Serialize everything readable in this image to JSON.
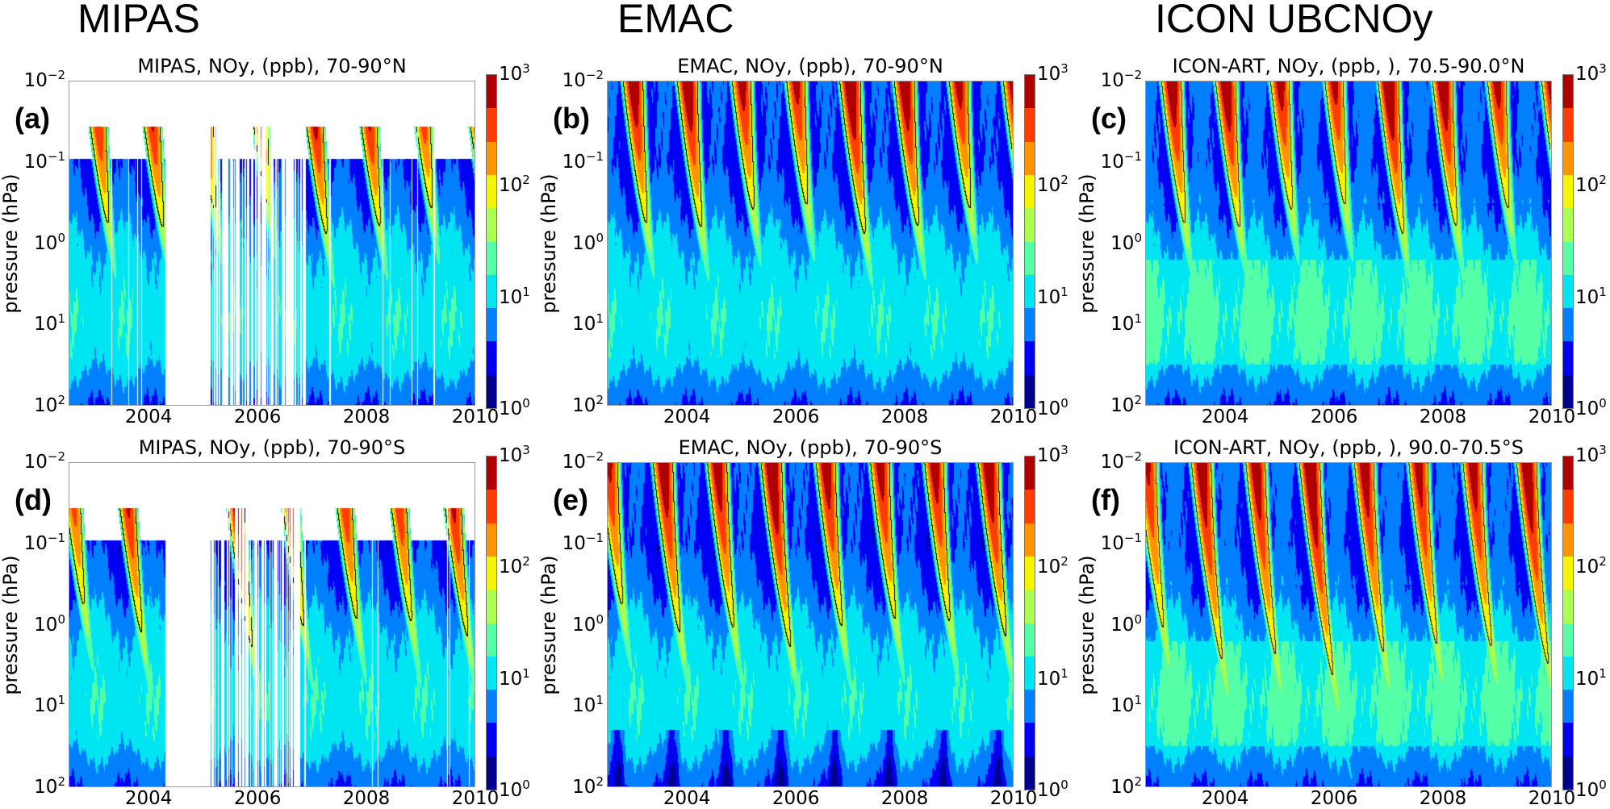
{
  "column_headers": [
    "MIPAS",
    "EMAC",
    "ICON UBCNOy"
  ],
  "colorbar": {
    "ticks": [
      {
        "base": "10",
        "exp": "0"
      },
      {
        "base": "10",
        "exp": "1"
      },
      {
        "base": "10",
        "exp": "2"
      },
      {
        "base": "10",
        "exp": "3"
      }
    ],
    "levels_log10": [
      0,
      0.3,
      0.6,
      0.9,
      1.2,
      1.5,
      1.8,
      2.1,
      2.4,
      2.7,
      3.0
    ],
    "colors": [
      "#00008f",
      "#0000f5",
      "#0080ff",
      "#00e5f2",
      "#55ffa5",
      "#aaff4f",
      "#f5f500",
      "#ff9400",
      "#ff3d00",
      "#b00000"
    ]
  },
  "chart_data": [
    {
      "type": "heatmap",
      "panel_label": "(a)",
      "title": "MIPAS, NOy, (ppb), 70-90°N",
      "source": "MIPAS",
      "hemisphere": "N",
      "ylabel": "pressure (hPa)",
      "xlabel": "",
      "xlim": [
        2002.5,
        2010
      ],
      "ylim_hPa": [
        100,
        0.01
      ],
      "yscale": "log",
      "x_ticks": [
        "2004",
        "2006",
        "2008",
        "2010"
      ],
      "y_ticks": [
        {
          "base": "10",
          "exp": "−2"
        },
        {
          "base": "10",
          "exp": "−1"
        },
        {
          "base": "10",
          "exp": "0"
        },
        {
          "base": "10",
          "exp": "1"
        },
        {
          "base": "10",
          "exp": "2"
        }
      ],
      "colorbar_range_ppb": [
        1,
        1000
      ],
      "contour_color": "#000000",
      "data_gap_years": [
        2004.3,
        2005.1
      ],
      "winter_maxima": [
        2003.0,
        2004.0,
        2005.0,
        2006.0,
        2007.0,
        2008.0,
        2009.0,
        2010.0
      ]
    },
    {
      "type": "heatmap",
      "panel_label": "(b)",
      "title": "EMAC, NOy, (ppb), 70-90°N",
      "source": "EMAC",
      "hemisphere": "N",
      "ylabel": "pressure (hPa)",
      "xlabel": "",
      "xlim": [
        2002.5,
        2010
      ],
      "ylim_hPa": [
        100,
        0.01
      ],
      "yscale": "log",
      "x_ticks": [
        "2004",
        "2006",
        "2008",
        "2010"
      ],
      "y_ticks": [
        {
          "base": "10",
          "exp": "−2"
        },
        {
          "base": "10",
          "exp": "−1"
        },
        {
          "base": "10",
          "exp": "0"
        },
        {
          "base": "10",
          "exp": "1"
        },
        {
          "base": "10",
          "exp": "2"
        }
      ],
      "colorbar_range_ppb": [
        1,
        1000
      ],
      "contour_color": "#000000",
      "winter_maxima": [
        2003.0,
        2004.0,
        2005.0,
        2006.0,
        2007.0,
        2008.0,
        2009.0,
        2010.0
      ]
    },
    {
      "type": "heatmap",
      "panel_label": "(c)",
      "title": "ICON-ART, NOy, (ppb, ), 70.5-90.0°N",
      "source": "ICON",
      "hemisphere": "N",
      "ylabel": "pressure (hPa)",
      "xlabel": "",
      "xlim": [
        2002.5,
        2010
      ],
      "ylim_hPa": [
        100,
        0.01
      ],
      "yscale": "log",
      "x_ticks": [
        "2004",
        "2006",
        "2008",
        "2010"
      ],
      "y_ticks": [
        {
          "base": "10",
          "exp": "−2"
        },
        {
          "base": "10",
          "exp": "−1"
        },
        {
          "base": "10",
          "exp": "0"
        },
        {
          "base": "10",
          "exp": "1"
        },
        {
          "base": "10",
          "exp": "2"
        }
      ],
      "colorbar_range_ppb": [
        1,
        1000
      ],
      "contour_color": "#3a1a5a",
      "winter_maxima": [
        2003.0,
        2004.0,
        2005.0,
        2006.0,
        2007.0,
        2008.0,
        2009.0,
        2010.0
      ]
    },
    {
      "type": "heatmap",
      "panel_label": "(d)",
      "title": "MIPAS, NOy, (ppb), 70-90°S",
      "source": "MIPAS",
      "hemisphere": "S",
      "ylabel": "pressure (hPa)",
      "xlabel": "",
      "xlim": [
        2002.5,
        2010
      ],
      "ylim_hPa": [
        100,
        0.01
      ],
      "yscale": "log",
      "x_ticks": [
        "2004",
        "2006",
        "2008",
        "2010"
      ],
      "y_ticks": [
        {
          "base": "10",
          "exp": "−2"
        },
        {
          "base": "10",
          "exp": "−1"
        },
        {
          "base": "10",
          "exp": "0"
        },
        {
          "base": "10",
          "exp": "1"
        },
        {
          "base": "10",
          "exp": "2"
        }
      ],
      "colorbar_range_ppb": [
        1,
        1000
      ],
      "contour_color": "#000000",
      "data_gap_years": [
        2004.3,
        2005.1
      ],
      "winter_maxima": [
        2002.55,
        2003.55,
        2004.55,
        2005.55,
        2006.55,
        2007.55,
        2008.55,
        2009.55
      ]
    },
    {
      "type": "heatmap",
      "panel_label": "(e)",
      "title": "EMAC, NOy, (ppb), 70-90°S",
      "source": "EMAC",
      "hemisphere": "S",
      "ylabel": "pressure (hPa)",
      "xlabel": "",
      "xlim": [
        2002.5,
        2010
      ],
      "ylim_hPa": [
        100,
        0.01
      ],
      "yscale": "log",
      "x_ticks": [
        "2004",
        "2006",
        "2008",
        "2010"
      ],
      "y_ticks": [
        {
          "base": "10",
          "exp": "−2"
        },
        {
          "base": "10",
          "exp": "−1"
        },
        {
          "base": "10",
          "exp": "0"
        },
        {
          "base": "10",
          "exp": "1"
        },
        {
          "base": "10",
          "exp": "2"
        }
      ],
      "colorbar_range_ppb": [
        1,
        1000
      ],
      "contour_color": "#000000",
      "winter_maxima": [
        2002.55,
        2003.55,
        2004.55,
        2005.55,
        2006.55,
        2007.55,
        2008.55,
        2009.55
      ]
    },
    {
      "type": "heatmap",
      "panel_label": "(f)",
      "title": "ICON-ART, NOy, (ppb, ), 90.0-70.5°S",
      "source": "ICON",
      "hemisphere": "S",
      "ylabel": "pressure (hPa)",
      "xlabel": "",
      "xlim": [
        2002.5,
        2010
      ],
      "ylim_hPa": [
        100,
        0.01
      ],
      "yscale": "log",
      "x_ticks": [
        "2004",
        "2006",
        "2008",
        "2010"
      ],
      "y_ticks": [
        {
          "base": "10",
          "exp": "−2"
        },
        {
          "base": "10",
          "exp": "−1"
        },
        {
          "base": "10",
          "exp": "0"
        },
        {
          "base": "10",
          "exp": "1"
        },
        {
          "base": "10",
          "exp": "2"
        }
      ],
      "colorbar_range_ppb": [
        1,
        1000
      ],
      "contour_color": "#3a1a5a",
      "winter_maxima": [
        2002.55,
        2003.55,
        2004.55,
        2005.55,
        2006.55,
        2007.55,
        2008.55,
        2009.55
      ]
    }
  ]
}
